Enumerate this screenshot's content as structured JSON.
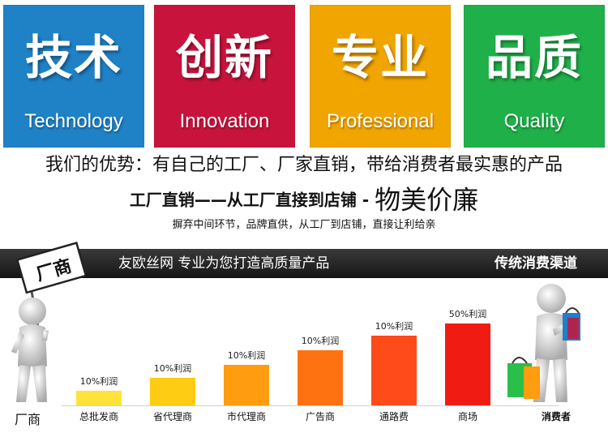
{
  "tiles": [
    {
      "big": "技术",
      "small": "Technology",
      "color": "#1f82c6"
    },
    {
      "big": "创新",
      "small": "Innovation",
      "color": "#c8143c"
    },
    {
      "big": "专业",
      "small": "Professional",
      "color": "#f0a500"
    },
    {
      "big": "品质",
      "small": "Quality",
      "color": "#1fb04a"
    }
  ],
  "advantage": "我们的优势：有自己的工厂、厂家直销，带给消费者最实惠的产品",
  "slogan": {
    "part1": "工厂直销——从工厂直接到店铺 - ",
    "part2": "物美价廉"
  },
  "subtitle": "摒弃中间环节，品牌直供，从工厂到店铺，直接让利给亲",
  "band": {
    "left": "友欧丝网  专业为您打造高质量产品",
    "right": "传统消费渠道"
  },
  "sign_text": "厂商",
  "maker_label": "厂商",
  "consumer_label": "消费者",
  "chart_data": {
    "type": "bar",
    "categories": [
      "总批发商",
      "省代理商",
      "市代理商",
      "广告商",
      "通路费",
      "商场"
    ],
    "values": [
      10,
      10,
      10,
      10,
      10,
      50
    ],
    "data_labels": [
      "10%利润",
      "10%利润",
      "10%利润",
      "10%利润",
      "10%利润",
      "50%利润"
    ],
    "bar_colors": [
      "#ffe23a",
      "#ffcc14",
      "#ff9c10",
      "#ff7212",
      "#ff4a1a",
      "#f01c14"
    ],
    "ylabel": ""
  }
}
